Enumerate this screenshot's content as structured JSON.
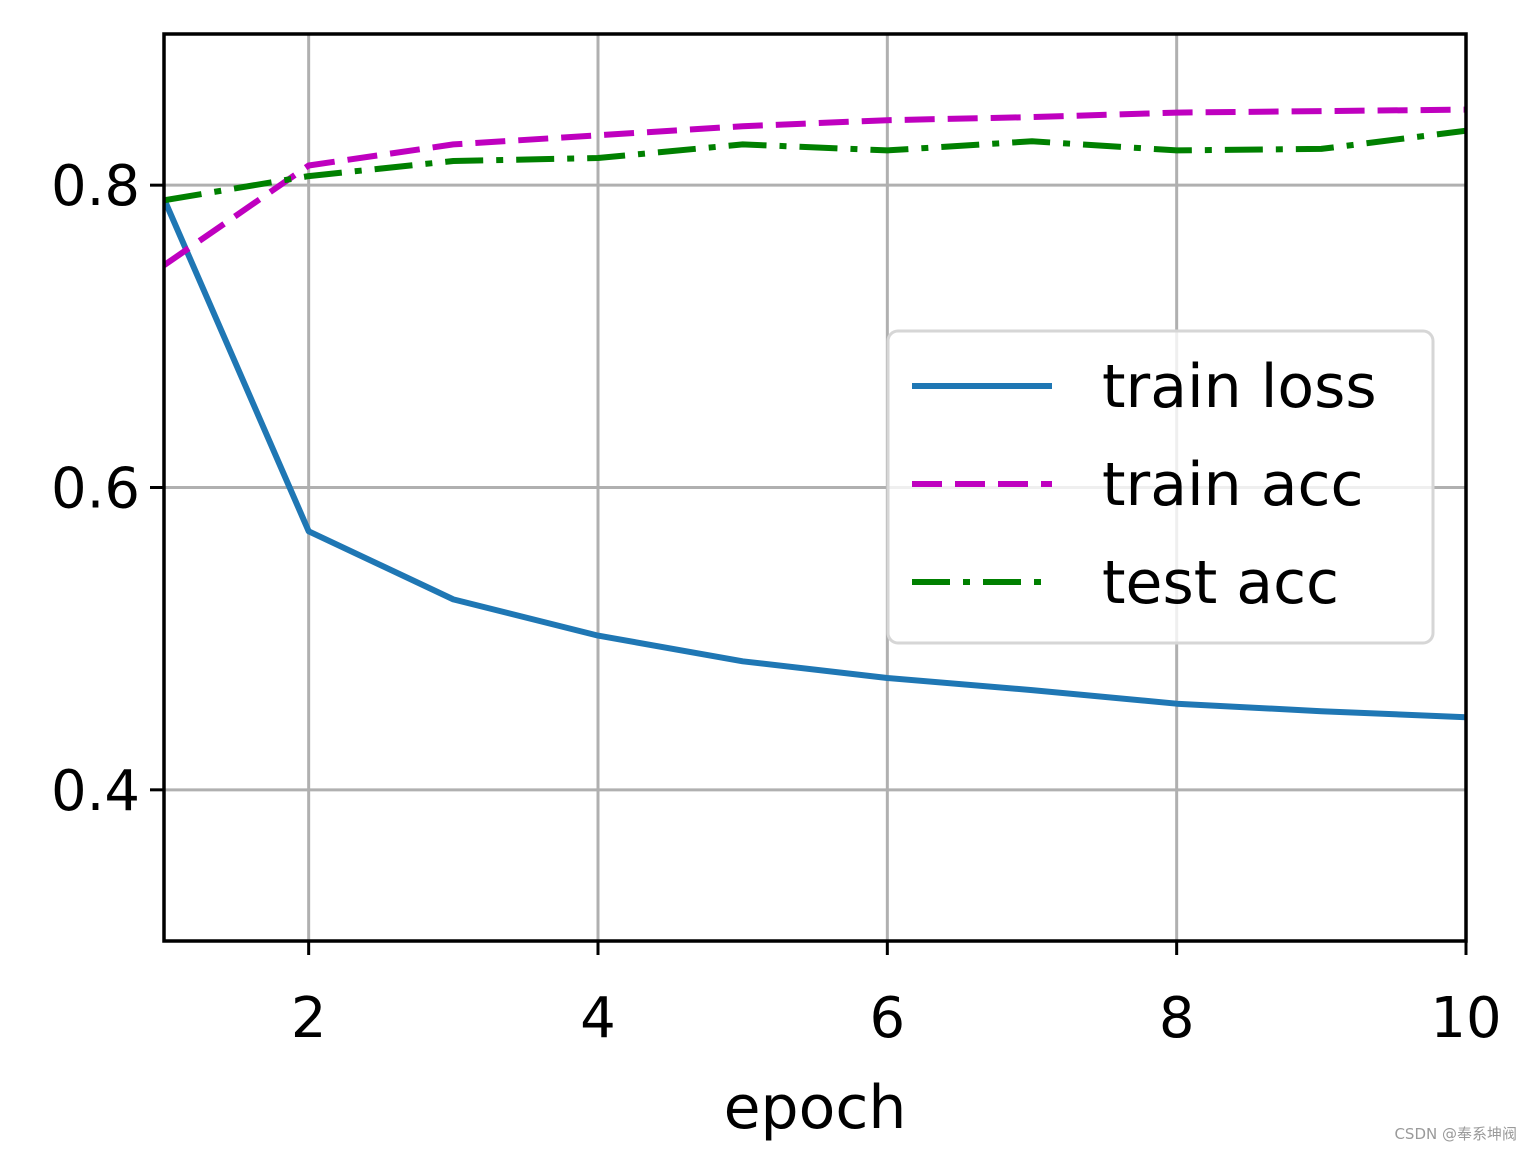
{
  "chart_data": {
    "type": "line",
    "title": "",
    "xlabel": "epoch",
    "ylabel": "",
    "xlim": [
      1,
      10
    ],
    "ylim": [
      0.3,
      0.9
    ],
    "x_ticks": [
      2,
      4,
      6,
      8,
      10
    ],
    "y_ticks": [
      0.4,
      0.6,
      0.8
    ],
    "x_tick_labels": [
      "2",
      "4",
      "6",
      "8",
      "10"
    ],
    "y_tick_labels": [
      "0.4",
      "0.6",
      "0.8"
    ],
    "grid": true,
    "legend_position": "center-right",
    "x": [
      1,
      2,
      3,
      4,
      5,
      6,
      7,
      8,
      9,
      10
    ],
    "series": [
      {
        "name": "train loss",
        "style": "solid",
        "color": "#1f77b4",
        "values": [
          0.791,
          0.571,
          0.526,
          0.502,
          0.485,
          0.474,
          0.466,
          0.457,
          0.452,
          0.448
        ]
      },
      {
        "name": "train acc",
        "style": "dashed",
        "color": "#bf00bf",
        "values": [
          0.747,
          0.813,
          0.827,
          0.833,
          0.839,
          0.843,
          0.845,
          0.848,
          0.849,
          0.85
        ]
      },
      {
        "name": "test acc",
        "style": "dashdot",
        "color": "#008000",
        "values": [
          0.79,
          0.806,
          0.816,
          0.818,
          0.827,
          0.823,
          0.829,
          0.823,
          0.824,
          0.836
        ]
      }
    ]
  },
  "watermark": "CSDN @奉系坤阀"
}
